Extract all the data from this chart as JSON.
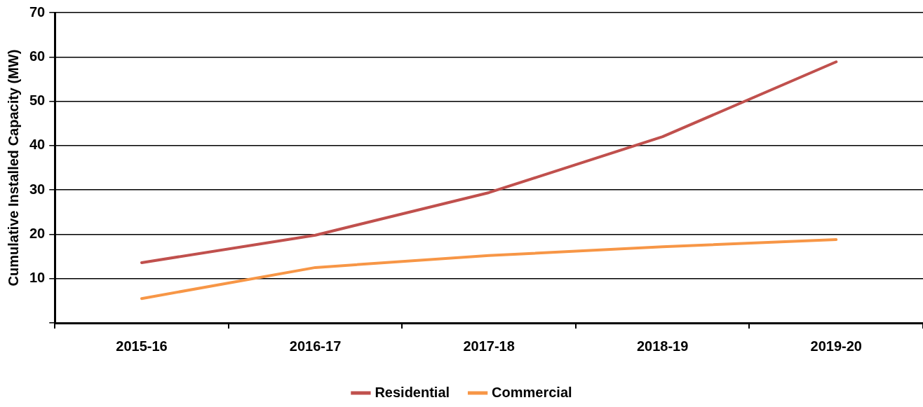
{
  "chart_data": {
    "type": "line",
    "ylabel": "Cumulative Installed Capacity (MW)",
    "categories": [
      "2015-16",
      "2016-17",
      "2017-18",
      "2018-19",
      "2019-20"
    ],
    "series": [
      {
        "name": "Residential",
        "color": "#c0504d",
        "values": [
          13.6,
          19.8,
          29.4,
          42.0,
          58.9
        ]
      },
      {
        "name": "Commercial",
        "color": "#f79646",
        "values": [
          5.5,
          12.5,
          15.2,
          17.2,
          18.8
        ]
      }
    ],
    "ylim": [
      0,
      70
    ],
    "yticks": [
      {
        "value": 0,
        "label": null
      },
      10,
      20,
      30,
      40,
      50,
      60,
      70
    ],
    "grid": "y",
    "legend": "bottom",
    "marker": "none",
    "line_style": "solid"
  }
}
